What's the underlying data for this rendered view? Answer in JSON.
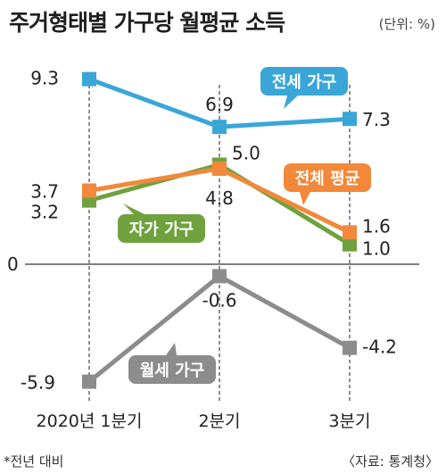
{
  "title": "주거형태별 가구당 월평균 소득",
  "unit": "(단위: %)",
  "footnote": "*전년 대비",
  "source": "〈자료: 통계청〉",
  "zero_label": "0",
  "chart_data": {
    "type": "line",
    "categories": [
      "2020년 1분기",
      "2분기",
      "3분기"
    ],
    "ylim": [
      -6,
      10
    ],
    "series": [
      {
        "name": "전세 가구",
        "values": [
          9.3,
          6.9,
          7.3
        ],
        "labels": [
          "9.3",
          "6.9",
          "7.3"
        ],
        "color": "#3aa6d8",
        "marker": "square"
      },
      {
        "name": "자가 가구",
        "values": [
          3.2,
          5.0,
          1.0
        ],
        "labels": [
          "3.2",
          "5.0",
          "1.0"
        ],
        "color": "#6fa23f",
        "marker": "square"
      },
      {
        "name": "전체 평균",
        "values": [
          3.7,
          4.8,
          1.6
        ],
        "labels": [
          "3.7",
          "4.8",
          "1.6"
        ],
        "color": "#f2883a",
        "marker": "square"
      },
      {
        "name": "월세 가구",
        "values": [
          -5.9,
          -0.6,
          -4.2
        ],
        "labels": [
          "-5.9",
          "-0.6",
          "-4.2"
        ],
        "color": "#8c8c8c",
        "marker": "square"
      }
    ]
  }
}
